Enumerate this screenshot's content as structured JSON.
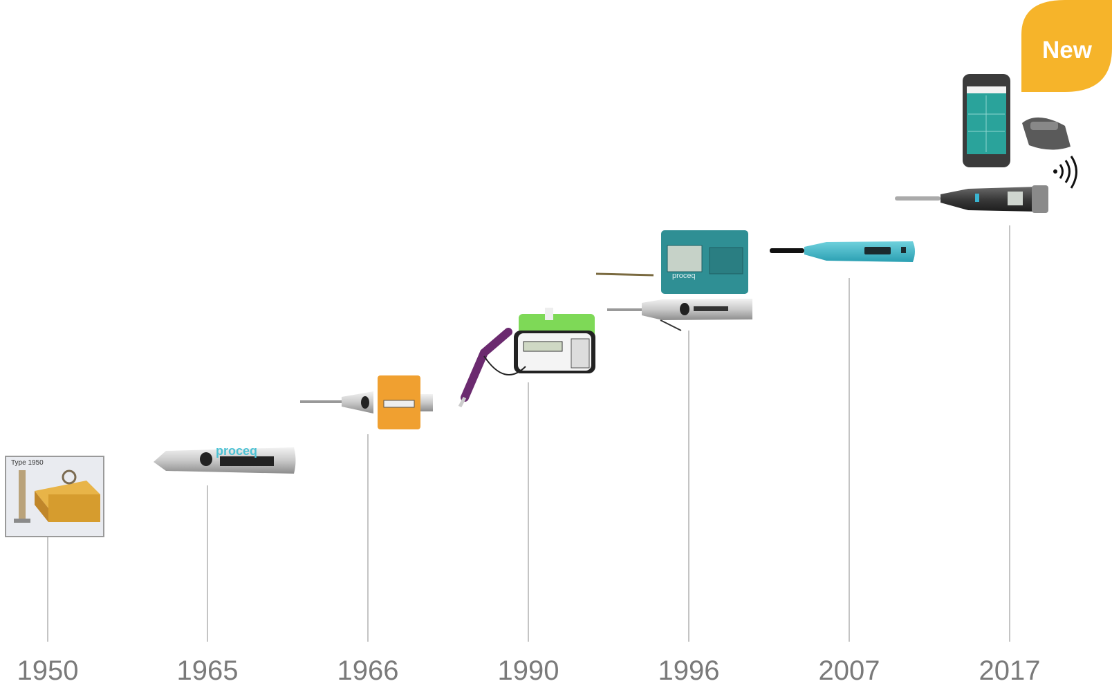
{
  "timeline": {
    "items": [
      {
        "year": "1950",
        "caption": "Type 1950"
      },
      {
        "year": "1965",
        "caption": "proceq"
      },
      {
        "year": "1966"
      },
      {
        "year": "1990"
      },
      {
        "year": "1996",
        "caption": "proceq"
      },
      {
        "year": "2007"
      },
      {
        "year": "2017"
      }
    ]
  },
  "badge": "New"
}
